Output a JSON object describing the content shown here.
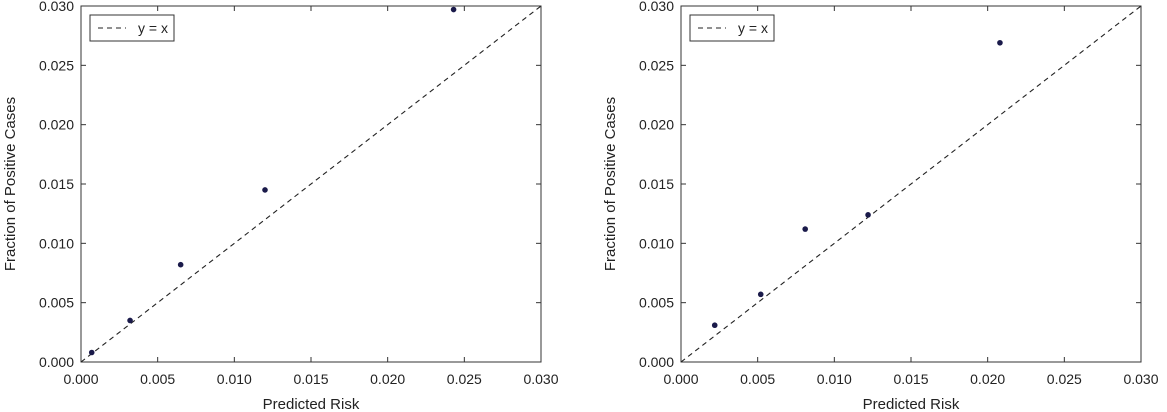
{
  "chart_data": [
    {
      "type": "scatter",
      "xlabel": "Predicted Risk",
      "ylabel": "Fraction of Positive Cases",
      "xlim": [
        0,
        0.03
      ],
      "ylim": [
        0,
        0.03
      ],
      "xticks": [
        "0.000",
        "0.005",
        "0.010",
        "0.015",
        "0.020",
        "0.025",
        "0.030"
      ],
      "yticks": [
        "0.000",
        "0.005",
        "0.010",
        "0.015",
        "0.020",
        "0.025",
        "0.030"
      ],
      "grid": false,
      "legend": {
        "position": "top-left",
        "entries": [
          {
            "label": "y = x",
            "style": "dashed-line"
          }
        ]
      },
      "reference_line": "y = x",
      "marker_color": "#1a1a4a",
      "points": [
        {
          "x": 0.0007,
          "y": 0.0008
        },
        {
          "x": 0.0032,
          "y": 0.0035
        },
        {
          "x": 0.0065,
          "y": 0.0082
        },
        {
          "x": 0.012,
          "y": 0.0145
        },
        {
          "x": 0.0243,
          "y": 0.0297
        }
      ]
    },
    {
      "type": "scatter",
      "xlabel": "Predicted Risk",
      "ylabel": "Fraction of Positive Cases",
      "xlim": [
        0,
        0.03
      ],
      "ylim": [
        0,
        0.03
      ],
      "xticks": [
        "0.000",
        "0.005",
        "0.010",
        "0.015",
        "0.020",
        "0.025",
        "0.030"
      ],
      "yticks": [
        "0.000",
        "0.005",
        "0.010",
        "0.015",
        "0.020",
        "0.025",
        "0.030"
      ],
      "grid": false,
      "legend": {
        "position": "top-left",
        "entries": [
          {
            "label": "y = x",
            "style": "dashed-line"
          }
        ]
      },
      "reference_line": "y = x",
      "marker_color": "#1a1a4a",
      "points": [
        {
          "x": 0.0022,
          "y": 0.0031
        },
        {
          "x": 0.0052,
          "y": 0.0057
        },
        {
          "x": 0.0081,
          "y": 0.0112
        },
        {
          "x": 0.0122,
          "y": 0.0124
        },
        {
          "x": 0.0208,
          "y": 0.0269
        }
      ]
    }
  ]
}
